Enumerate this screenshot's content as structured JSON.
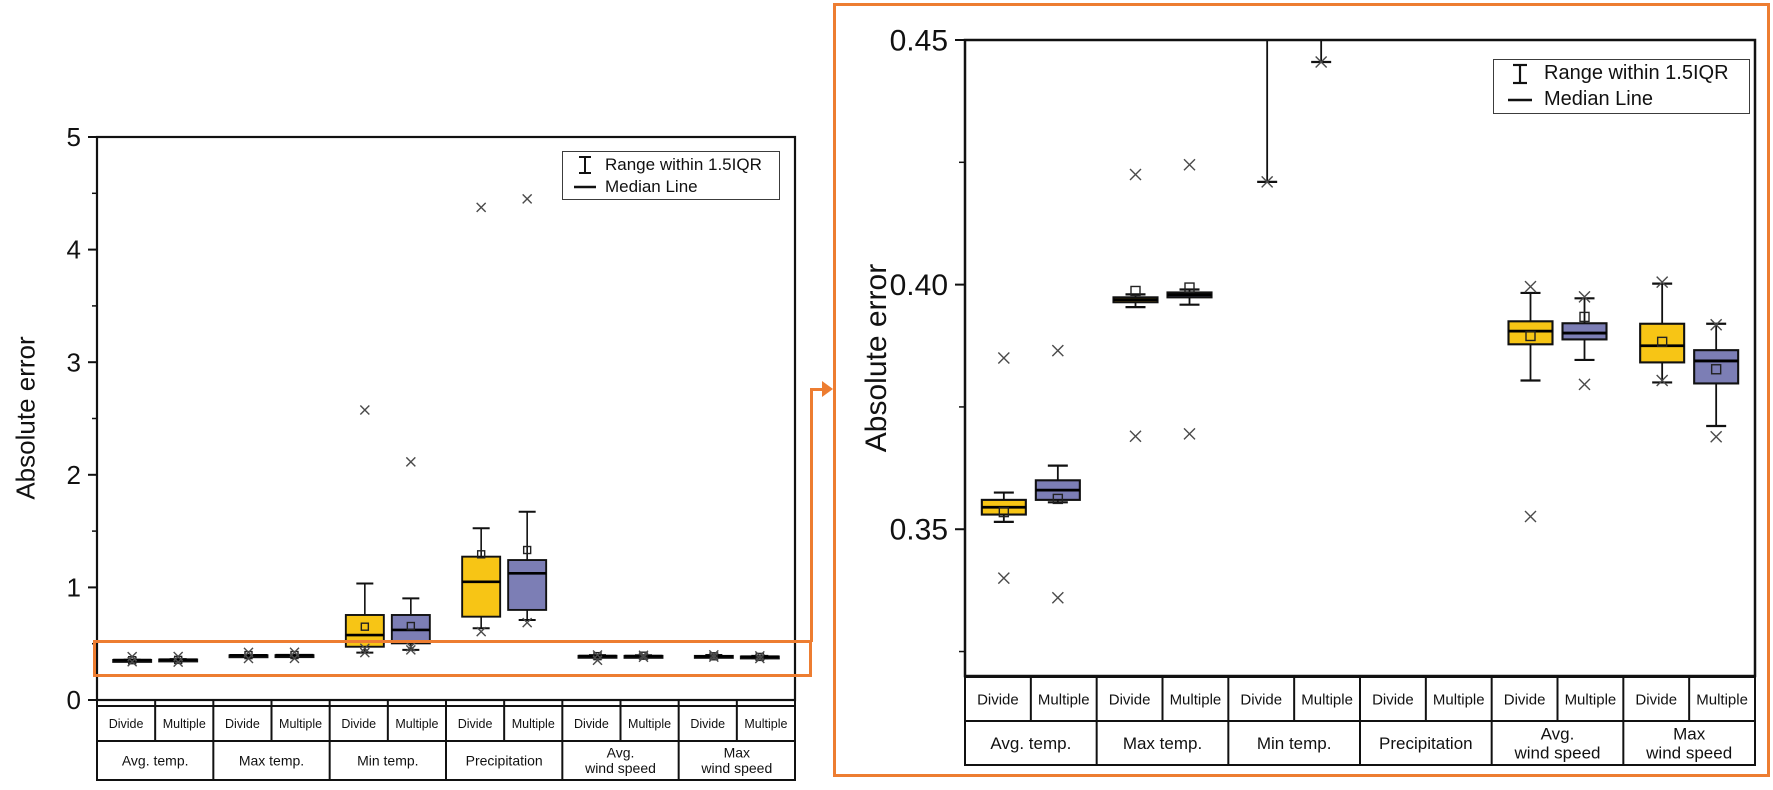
{
  "figure": {
    "ylabel": "Absolute error",
    "legend": {
      "iqr_label": "Range within 1.5IQR",
      "median_label": "Median Line"
    },
    "sublabels": [
      "Divide",
      "Multiple"
    ],
    "categories": [
      "Avg. temp.",
      "Max temp.",
      "Min temp.",
      "Precipitation",
      "Avg.\nwind speed",
      "Max\nwind speed"
    ],
    "colors": {
      "divide_fill": "#F7C515",
      "multiple_fill": "#7C7EB5",
      "box_edge": "#111111",
      "median_line": "#000000",
      "outlier_marker": "#4a4a4a",
      "highlight_orange": "#ED7D31"
    },
    "annotation": {
      "type": "zoom-highlight",
      "description": "Orange rectangle over the 0.32-0.45 band of the left panel, connected by an arrow to the orange-framed zoomed right panel"
    }
  },
  "chart_data": [
    {
      "type": "box",
      "panel": "overview",
      "ylabel": "Absolute error",
      "ylim": [
        0,
        5
      ],
      "ytick_values": [
        0,
        1,
        2,
        3,
        4,
        5
      ],
      "ytick_labels": [
        "0",
        "1",
        "2",
        "3",
        "4",
        "5"
      ],
      "minor_tick_step": 0.5,
      "grid": false,
      "legend_position": "top-right",
      "categories": [
        "Avg. temp.",
        "Max temp.",
        "Min temp.",
        "Precipitation",
        "Avg.\nwind speed",
        "Max\nwind speed"
      ],
      "sublabels": [
        "Divide",
        "Multiple"
      ],
      "boxes": [
        {
          "category": "Avg. temp.",
          "variant": "Divide",
          "q1": 0.353,
          "median": 0.3545,
          "q3": 0.356,
          "mean": 0.3535,
          "whisker_low": 0.3515,
          "whisker_high": 0.3575,
          "outliers": [
            0.385,
            0.34
          ]
        },
        {
          "category": "Avg. temp.",
          "variant": "Multiple",
          "q1": 0.356,
          "median": 0.358,
          "q3": 0.36,
          "mean": 0.3562,
          "whisker_low": 0.3555,
          "whisker_high": 0.363,
          "outliers": [
            0.3865,
            0.336
          ]
        },
        {
          "category": "Max temp.",
          "variant": "Divide",
          "q1": 0.3964,
          "median": 0.3969,
          "q3": 0.3974,
          "mean": 0.3987,
          "whisker_low": 0.3954,
          "whisker_high": 0.398,
          "outliers": [
            0.4225,
            0.369
          ]
        },
        {
          "category": "Max temp.",
          "variant": "Multiple",
          "q1": 0.3974,
          "median": 0.3979,
          "q3": 0.3984,
          "mean": 0.3994,
          "whisker_low": 0.3959,
          "whisker_high": 0.399,
          "outliers": [
            0.4245,
            0.3695
          ]
        },
        {
          "category": "Min temp.",
          "variant": "Divide",
          "q1": 0.473,
          "median": 0.577,
          "q3": 0.755,
          "mean": 0.651,
          "whisker_low": 0.421,
          "whisker_high": 1.035,
          "outliers": [
            2.575,
            0.459,
            0.421
          ]
        },
        {
          "category": "Min temp.",
          "variant": "Multiple",
          "q1": 0.503,
          "median": 0.622,
          "q3": 0.755,
          "mean": 0.657,
          "whisker_low": 0.4455,
          "whisker_high": 0.903,
          "outliers": [
            2.115,
            0.473,
            0.4455
          ]
        },
        {
          "category": "Precipitation",
          "variant": "Divide",
          "q1": 0.74,
          "median": 1.05,
          "q3": 1.273,
          "mean": 1.294,
          "whisker_low": 0.637,
          "whisker_high": 1.525,
          "outliers": [
            4.375,
            0.607
          ]
        },
        {
          "category": "Precipitation",
          "variant": "Multiple",
          "q1": 0.8,
          "median": 1.125,
          "q3": 1.243,
          "mean": 1.332,
          "whisker_low": 0.71,
          "whisker_high": 1.672,
          "outliers": [
            4.45,
            0.687
          ]
        },
        {
          "category": "Avg. wind speed",
          "variant": "Divide",
          "q1": 0.3878,
          "median": 0.3905,
          "q3": 0.3925,
          "mean": 0.3895,
          "whisker_low": 0.3804,
          "whisker_high": 0.3983,
          "outliers": [
            0.3996,
            0.3526
          ]
        },
        {
          "category": "Avg. wind speed",
          "variant": "Multiple",
          "q1": 0.3888,
          "median": 0.3901,
          "q3": 0.3921,
          "mean": 0.3934,
          "whisker_low": 0.3846,
          "whisker_high": 0.3972,
          "outliers": [
            0.3975,
            0.3796
          ]
        },
        {
          "category": "Max wind speed",
          "variant": "Divide",
          "q1": 0.3841,
          "median": 0.3875,
          "q3": 0.392,
          "mean": 0.3883,
          "whisker_low": 0.38,
          "whisker_high": 0.4002,
          "outliers": [
            0.4005,
            0.3804
          ]
        },
        {
          "category": "Max wind speed",
          "variant": "Multiple",
          "q1": 0.3798,
          "median": 0.3844,
          "q3": 0.3866,
          "mean": 0.3827,
          "whisker_low": 0.3711,
          "whisker_high": 0.392,
          "outliers": [
            0.3918,
            0.3689
          ]
        }
      ]
    },
    {
      "type": "box",
      "panel": "zoomed",
      "ylabel": "Absolute error",
      "ylim": [
        0.32,
        0.45
      ],
      "ytick_values": [
        0.35,
        0.4,
        0.45
      ],
      "ytick_labels": [
        "0.35",
        "0.40",
        "0.45"
      ],
      "minor_tick_step": 0.025,
      "grid": false,
      "legend_position": "top-right",
      "categories": [
        "Avg. temp.",
        "Max temp.",
        "Min temp.",
        "Precipitation",
        "Avg.\nwind speed",
        "Max\nwind speed"
      ],
      "sublabels": [
        "Divide",
        "Multiple"
      ],
      "boxes": [
        {
          "category": "Avg. temp.",
          "variant": "Divide",
          "q1": 0.353,
          "median": 0.3545,
          "q3": 0.356,
          "mean": 0.3535,
          "whisker_low": 0.3515,
          "whisker_high": 0.3575,
          "outliers": [
            0.385,
            0.34
          ]
        },
        {
          "category": "Avg. temp.",
          "variant": "Multiple",
          "q1": 0.356,
          "median": 0.358,
          "q3": 0.36,
          "mean": 0.3562,
          "whisker_low": 0.3555,
          "whisker_high": 0.363,
          "outliers": [
            0.3865,
            0.336
          ]
        },
        {
          "category": "Max temp.",
          "variant": "Divide",
          "q1": 0.3964,
          "median": 0.3969,
          "q3": 0.3974,
          "mean": 0.3987,
          "whisker_low": 0.3954,
          "whisker_high": 0.398,
          "outliers": [
            0.4225,
            0.369
          ]
        },
        {
          "category": "Max temp.",
          "variant": "Multiple",
          "q1": 0.3974,
          "median": 0.3979,
          "q3": 0.3984,
          "mean": 0.3994,
          "whisker_low": 0.3959,
          "whisker_high": 0.399,
          "outliers": [
            0.4245,
            0.3695
          ]
        },
        {
          "category": "Min temp.",
          "variant": "Divide",
          "q1": 0.473,
          "median": 0.577,
          "q3": 0.755,
          "mean": 0.651,
          "whisker_low": 0.421,
          "whisker_high": 1.035,
          "outliers": [
            2.575,
            0.459,
            0.421
          ]
        },
        {
          "category": "Min temp.",
          "variant": "Multiple",
          "q1": 0.503,
          "median": 0.622,
          "q3": 0.755,
          "mean": 0.657,
          "whisker_low": 0.4455,
          "whisker_high": 0.903,
          "outliers": [
            2.115,
            0.473,
            0.4455
          ]
        },
        {
          "category": "Precipitation",
          "variant": "Divide",
          "q1": 0.74,
          "median": 1.05,
          "q3": 1.273,
          "mean": 1.294,
          "whisker_low": 0.637,
          "whisker_high": 1.525,
          "outliers": [
            4.375,
            0.607
          ]
        },
        {
          "category": "Precipitation",
          "variant": "Multiple",
          "q1": 0.8,
          "median": 1.125,
          "q3": 1.243,
          "mean": 1.332,
          "whisker_low": 0.71,
          "whisker_high": 1.672,
          "outliers": [
            4.45,
            0.687
          ]
        },
        {
          "category": "Avg. wind speed",
          "variant": "Divide",
          "q1": 0.3878,
          "median": 0.3905,
          "q3": 0.3925,
          "mean": 0.3895,
          "whisker_low": 0.3804,
          "whisker_high": 0.3983,
          "outliers": [
            0.3996,
            0.3526
          ]
        },
        {
          "category": "Avg. wind speed",
          "variant": "Multiple",
          "q1": 0.3888,
          "median": 0.3901,
          "q3": 0.3921,
          "mean": 0.3934,
          "whisker_low": 0.3846,
          "whisker_high": 0.3972,
          "outliers": [
            0.3975,
            0.3796
          ]
        },
        {
          "category": "Max wind speed",
          "variant": "Divide",
          "q1": 0.3841,
          "median": 0.3875,
          "q3": 0.392,
          "mean": 0.3883,
          "whisker_low": 0.38,
          "whisker_high": 0.4002,
          "outliers": [
            0.4005,
            0.3804
          ]
        },
        {
          "category": "Max wind speed",
          "variant": "Multiple",
          "q1": 0.3798,
          "median": 0.3844,
          "q3": 0.3866,
          "mean": 0.3827,
          "whisker_low": 0.3711,
          "whisker_high": 0.392,
          "outliers": [
            0.3918,
            0.3689
          ]
        }
      ]
    }
  ]
}
